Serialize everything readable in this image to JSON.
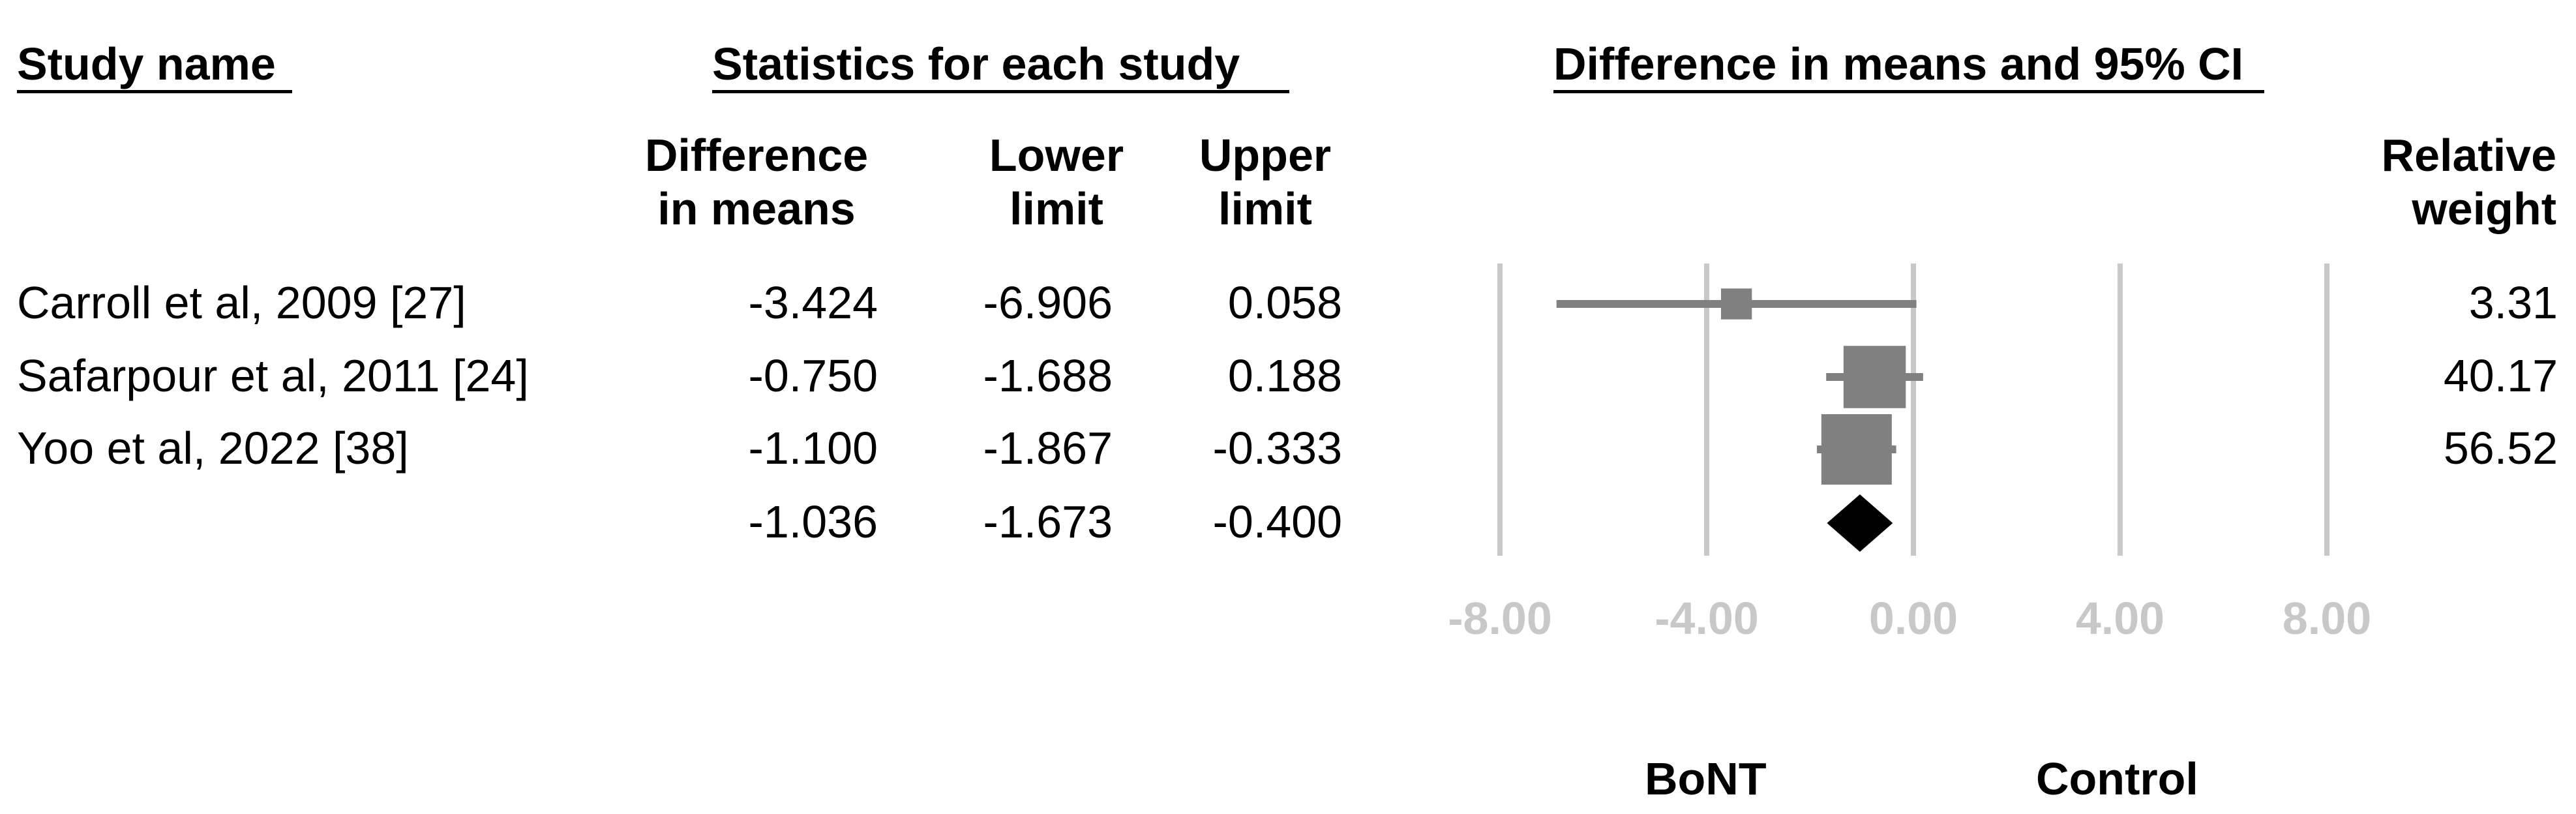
{
  "headers": {
    "study_name": "Study name",
    "statistics": "Statistics for each study",
    "plot": "Difference in means and 95% CI"
  },
  "columns": {
    "diff": [
      "Difference",
      "in means"
    ],
    "lower": [
      "Lower",
      "limit"
    ],
    "upper": [
      "Upper",
      "limit"
    ],
    "weight": [
      "Relative",
      "weight"
    ]
  },
  "chart_data": {
    "type": "forest",
    "xlim": [
      -8,
      8
    ],
    "ticks": [
      -8,
      -4,
      0,
      4,
      8
    ],
    "tick_labels": [
      "-8.00",
      "-4.00",
      "0.00",
      "4.00",
      "8.00"
    ],
    "studies": [
      {
        "name": "Carroll et al, 2009 [27]",
        "diff": -3.424,
        "lower": -6.906,
        "upper": 0.058,
        "weight": 3.31,
        "diff_text": "-3.424",
        "lower_text": "-6.906",
        "upper_text": "0.058",
        "weight_text": "3.31"
      },
      {
        "name": "Safarpour et al, 2011 [24]",
        "diff": -0.75,
        "lower": -1.688,
        "upper": 0.188,
        "weight": 40.17,
        "diff_text": "-0.750",
        "lower_text": "-1.688",
        "upper_text": "0.188",
        "weight_text": "40.17"
      },
      {
        "name": "Yoo et al, 2022 [38]",
        "diff": -1.1,
        "lower": -1.867,
        "upper": -0.333,
        "weight": 56.52,
        "diff_text": "-1.100",
        "lower_text": "-1.867",
        "upper_text": "-0.333",
        "weight_text": "56.52"
      }
    ],
    "pooled": {
      "diff": -1.036,
      "lower": -1.673,
      "upper": -0.4,
      "diff_text": "-1.036",
      "lower_text": "-1.673",
      "upper_text": "-0.400"
    },
    "favours_left": "BoNT",
    "favours_right": "Control",
    "colors": {
      "study": "#808080",
      "pooled": "#000000",
      "grid": "#c8c8c8"
    }
  }
}
